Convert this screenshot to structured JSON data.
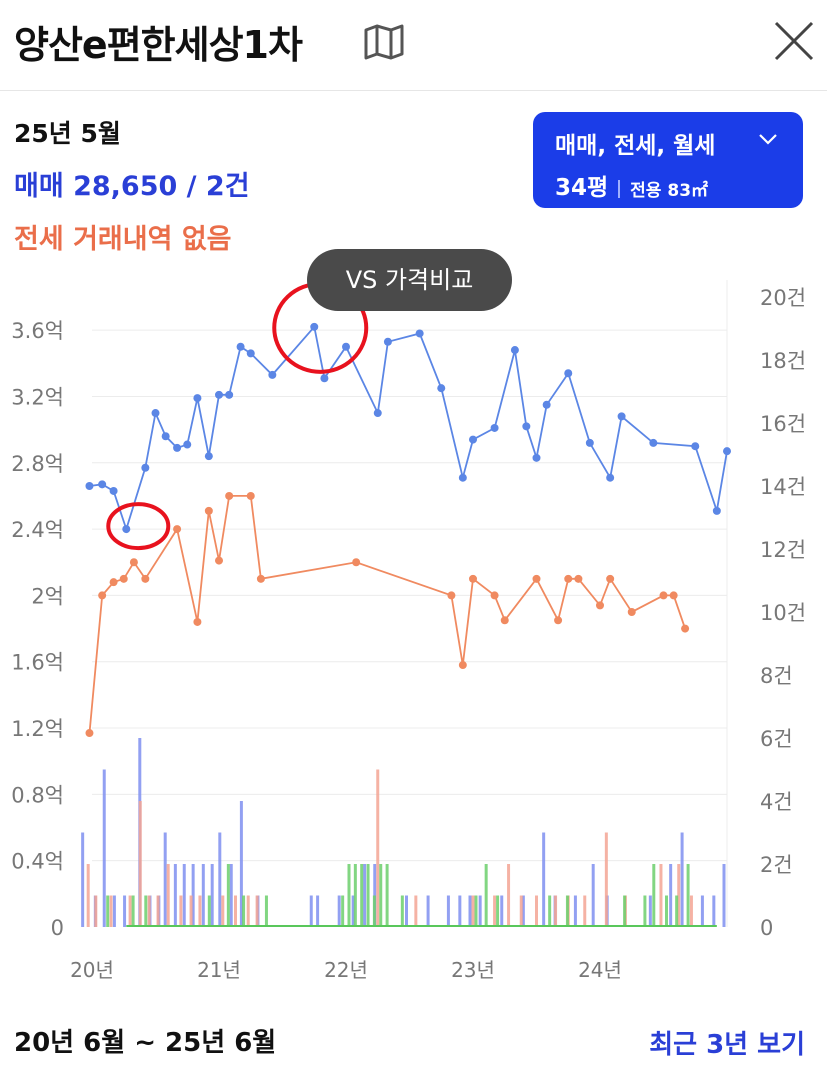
{
  "header": {
    "title": "양산e편한세상1차",
    "map_icon": "map-icon",
    "close_icon": "close-icon"
  },
  "info": {
    "period": "25년 5월",
    "sale_summary": "매매 28,650 / 2건",
    "jeonse_summary": "전세 거래내역 없음"
  },
  "filter": {
    "types_label": "매매, 전세, 월세",
    "size_label": "34평",
    "area_label": "전용 83㎡",
    "chevron_icon": "chevron-down-icon"
  },
  "vs_button": "VS 가격비교",
  "footer": {
    "range_label": "20년 6월 ~ 25년 6월",
    "recent_link": "최근 3년 보기"
  },
  "colors": {
    "sale": "#5b86e5",
    "jeonse": "#f08a60",
    "monthly": "#59c75b",
    "sale_text": "#2a3fd6",
    "jeonse_text": "#ea6e4a",
    "filter_bg": "#1b3de8",
    "highlight": "#e8121e"
  },
  "chart_data": {
    "type": "line",
    "x_tick_labels": [
      "20년",
      "21년",
      "22년",
      "23년",
      "24년"
    ],
    "x_ticks": [
      2020.0,
      2021.0,
      2022.0,
      2023.0,
      2024.0
    ],
    "xlim": [
      2020.0,
      2025.0
    ],
    "y_left": {
      "ticks": [
        0,
        0.4,
        0.8,
        1.2,
        1.6,
        2.0,
        2.4,
        2.8,
        3.2,
        3.6
      ],
      "labels": [
        "0",
        "0.4억",
        "0.8억",
        "1.2억",
        "1.6억",
        "2억",
        "2.4억",
        "2.8억",
        "3.2억",
        "3.6억"
      ],
      "range": [
        0,
        3.8
      ]
    },
    "y_right": {
      "ticks": [
        0,
        2,
        4,
        6,
        8,
        10,
        12,
        14,
        16,
        18,
        20
      ],
      "labels": [
        "0",
        "2건",
        "4건",
        "6건",
        "8건",
        "10건",
        "12건",
        "14건",
        "16건",
        "18건",
        "20건"
      ],
      "range": [
        0,
        20
      ]
    },
    "series": [
      {
        "kind": "sale_price",
        "color": "#5b86e5",
        "points": [
          [
            2019.98,
            2.66
          ],
          [
            2020.08,
            2.67
          ],
          [
            2020.17,
            2.63
          ],
          [
            2020.27,
            2.4
          ],
          [
            2020.42,
            2.77
          ],
          [
            2020.5,
            3.1
          ],
          [
            2020.58,
            2.96
          ],
          [
            2020.67,
            2.89
          ],
          [
            2020.75,
            2.91
          ],
          [
            2020.83,
            3.19
          ],
          [
            2020.92,
            2.84
          ],
          [
            2021.0,
            3.21
          ],
          [
            2021.08,
            3.21
          ],
          [
            2021.17,
            3.5
          ],
          [
            2021.25,
            3.46
          ],
          [
            2021.42,
            3.33
          ],
          [
            2021.75,
            3.62
          ],
          [
            2021.83,
            3.31
          ],
          [
            2022.0,
            3.5
          ],
          [
            2022.25,
            3.1
          ],
          [
            2022.33,
            3.53
          ],
          [
            2022.58,
            3.58
          ],
          [
            2022.75,
            3.25
          ],
          [
            2022.92,
            2.71
          ],
          [
            2023.0,
            2.94
          ],
          [
            2023.17,
            3.01
          ],
          [
            2023.33,
            3.48
          ],
          [
            2023.42,
            3.02
          ],
          [
            2023.5,
            2.83
          ],
          [
            2023.58,
            3.15
          ],
          [
            2023.75,
            3.34
          ],
          [
            2023.92,
            2.92
          ],
          [
            2024.08,
            2.71
          ],
          [
            2024.17,
            3.08
          ],
          [
            2024.42,
            2.92
          ],
          [
            2024.75,
            2.9
          ],
          [
            2024.92,
            2.51
          ],
          [
            2025.0,
            2.87
          ]
        ]
      },
      {
        "kind": "jeonse_price",
        "color": "#f08a60",
        "points": [
          [
            2019.98,
            1.17
          ],
          [
            2020.08,
            2.0
          ],
          [
            2020.17,
            2.08
          ],
          [
            2020.25,
            2.1
          ],
          [
            2020.33,
            2.2
          ],
          [
            2020.42,
            2.1
          ],
          [
            2020.67,
            2.4
          ],
          [
            2020.83,
            1.84
          ],
          [
            2020.92,
            2.51
          ],
          [
            2021.0,
            2.21
          ],
          [
            2021.08,
            2.6
          ],
          [
            2021.25,
            2.6
          ],
          [
            2021.33,
            2.1
          ],
          [
            2022.08,
            2.2
          ],
          [
            2022.83,
            2.0
          ],
          [
            2022.92,
            1.58
          ],
          [
            2023.0,
            2.1
          ],
          [
            2023.17,
            2.0
          ],
          [
            2023.25,
            1.85
          ],
          [
            2023.5,
            2.1
          ],
          [
            2023.67,
            1.85
          ],
          [
            2023.75,
            2.1
          ],
          [
            2023.83,
            2.1
          ],
          [
            2024.0,
            1.94
          ],
          [
            2024.08,
            2.1
          ],
          [
            2024.25,
            1.9
          ],
          [
            2024.5,
            2.0
          ],
          [
            2024.58,
            2.0
          ],
          [
            2024.67,
            1.8
          ]
        ]
      }
    ],
    "volume_bars": [
      {
        "kind": "sale_count",
        "color": "#7f8ff0",
        "data": [
          [
            2019.95,
            3
          ],
          [
            2020.05,
            1
          ],
          [
            2020.12,
            5
          ],
          [
            2020.2,
            1
          ],
          [
            2020.28,
            1
          ],
          [
            2020.4,
            6
          ],
          [
            2020.48,
            1
          ],
          [
            2020.55,
            1
          ],
          [
            2020.6,
            3
          ],
          [
            2020.68,
            2
          ],
          [
            2020.75,
            2
          ],
          [
            2020.82,
            2
          ],
          [
            2020.9,
            2
          ],
          [
            2020.97,
            2
          ],
          [
            2021.03,
            3
          ],
          [
            2021.12,
            2
          ],
          [
            2021.2,
            4
          ],
          [
            2021.33,
            1
          ],
          [
            2021.75,
            1
          ],
          [
            2021.8,
            1
          ],
          [
            2021.97,
            1
          ],
          [
            2022.08,
            1
          ],
          [
            2022.17,
            2
          ],
          [
            2022.25,
            2
          ],
          [
            2022.5,
            1
          ],
          [
            2022.67,
            1
          ],
          [
            2022.83,
            1
          ],
          [
            2022.92,
            1
          ],
          [
            2023.0,
            1
          ],
          [
            2023.08,
            1
          ],
          [
            2023.25,
            1
          ],
          [
            2023.42,
            1
          ],
          [
            2023.58,
            3
          ],
          [
            2023.67,
            1
          ],
          [
            2023.83,
            1
          ],
          [
            2023.97,
            2
          ],
          [
            2024.08,
            1
          ],
          [
            2024.42,
            1
          ],
          [
            2024.58,
            2
          ],
          [
            2024.67,
            3
          ],
          [
            2024.83,
            1
          ],
          [
            2024.92,
            1
          ],
          [
            2025.0,
            2
          ]
        ]
      },
      {
        "kind": "jeonse_count",
        "color": "#f3a594",
        "data": [
          [
            2019.97,
            2
          ],
          [
            2020.03,
            1
          ],
          [
            2020.15,
            1
          ],
          [
            2020.3,
            1
          ],
          [
            2020.38,
            4
          ],
          [
            2020.45,
            1
          ],
          [
            2020.52,
            1
          ],
          [
            2020.6,
            2
          ],
          [
            2020.7,
            1
          ],
          [
            2020.78,
            1
          ],
          [
            2020.85,
            1
          ],
          [
            2021.03,
            1
          ],
          [
            2021.13,
            1
          ],
          [
            2021.23,
            1
          ],
          [
            2021.3,
            1
          ],
          [
            2022.25,
            5
          ],
          [
            2022.55,
            1
          ],
          [
            2023.0,
            1
          ],
          [
            2023.17,
            1
          ],
          [
            2023.28,
            2
          ],
          [
            2023.38,
            1
          ],
          [
            2023.5,
            1
          ],
          [
            2023.65,
            1
          ],
          [
            2023.75,
            1
          ],
          [
            2023.88,
            1
          ],
          [
            2024.05,
            3
          ],
          [
            2024.2,
            1
          ],
          [
            2024.48,
            2
          ],
          [
            2024.62,
            2
          ],
          [
            2024.72,
            1
          ]
        ]
      },
      {
        "kind": "monthly_count",
        "color": "#6ccf6c",
        "data": [
          [
            2020.1,
            1
          ],
          [
            2020.3,
            1
          ],
          [
            2020.4,
            1
          ],
          [
            2020.9,
            1
          ],
          [
            2021.05,
            2
          ],
          [
            2021.17,
            1
          ],
          [
            2021.35,
            1
          ],
          [
            2021.95,
            1
          ],
          [
            2022.0,
            2
          ],
          [
            2022.05,
            2
          ],
          [
            2022.1,
            2
          ],
          [
            2022.15,
            2
          ],
          [
            2022.2,
            1
          ],
          [
            2022.25,
            2
          ],
          [
            2022.3,
            2
          ],
          [
            2022.42,
            1
          ],
          [
            2023.0,
            1
          ],
          [
            2023.08,
            2
          ],
          [
            2023.17,
            1
          ],
          [
            2023.58,
            1
          ],
          [
            2023.72,
            1
          ],
          [
            2024.17,
            1
          ],
          [
            2024.33,
            1
          ],
          [
            2024.4,
            2
          ],
          [
            2024.5,
            1
          ],
          [
            2024.58,
            1
          ],
          [
            2024.67,
            2
          ]
        ]
      }
    ],
    "highlights": [
      {
        "at": [
          2021.75,
          3.62
        ]
      },
      {
        "at": [
          2020.27,
          2.4
        ]
      }
    ]
  }
}
